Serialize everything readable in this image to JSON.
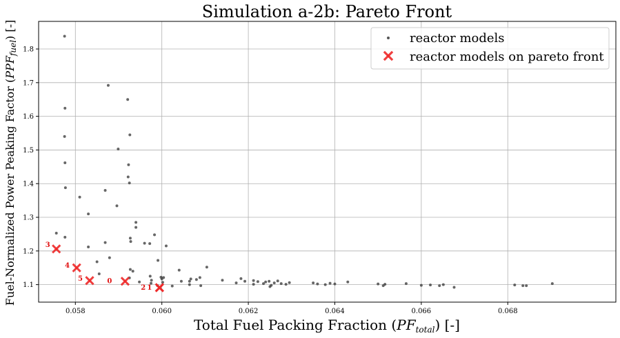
{
  "chart_data": {
    "type": "scatter",
    "title": "Simulation a-2b: Pareto Front",
    "xlabel": {
      "prefix": "Total Fuel Packing Fraction (",
      "italic": "PF",
      "sub": "total",
      "suffix": ") [-]"
    },
    "ylabel": {
      "prefix": "Fuel-Normalized Power Peaking Factor (",
      "italic": "PPF",
      "sub": "fuel",
      "suffix": ") [-]"
    },
    "xlim": [
      0.05715,
      0.0705
    ],
    "ylim": [
      1.048,
      1.882
    ],
    "xticks": [
      0.058,
      0.06,
      0.062,
      0.064,
      0.066,
      0.068
    ],
    "xtick_labels": [
      "0.058",
      "0.060",
      "0.062",
      "0.064",
      "0.066",
      "0.068"
    ],
    "yticks": [
      1.1,
      1.2,
      1.3,
      1.4,
      1.5,
      1.6,
      1.7,
      1.8
    ],
    "ytick_labels": [
      "1.1",
      "1.2",
      "1.3",
      "1.4",
      "1.5",
      "1.6",
      "1.7",
      "1.8"
    ],
    "grid": true,
    "legend_position": "top-right",
    "series": [
      {
        "name": "reactor models",
        "marker": "dot",
        "color": "#333333",
        "points": [
          [
            0.05775,
            1.838
          ],
          [
            0.05876,
            1.692
          ],
          [
            0.05921,
            1.65
          ],
          [
            0.05776,
            1.624
          ],
          [
            0.05926,
            1.545
          ],
          [
            0.05775,
            1.54
          ],
          [
            0.05899,
            1.503
          ],
          [
            0.05776,
            1.462
          ],
          [
            0.05923,
            1.456
          ],
          [
            0.05922,
            1.42
          ],
          [
            0.05925,
            1.402
          ],
          [
            0.05777,
            1.388
          ],
          [
            0.05869,
            1.38
          ],
          [
            0.0581,
            1.36
          ],
          [
            0.05896,
            1.334
          ],
          [
            0.0583,
            1.31
          ],
          [
            0.0594,
            1.285
          ],
          [
            0.0594,
            1.27
          ],
          [
            0.05756,
            1.253
          ],
          [
            0.05983,
            1.248
          ],
          [
            0.05776,
            1.241
          ],
          [
            0.05927,
            1.238
          ],
          [
            0.05928,
            1.228
          ],
          [
            0.05869,
            1.225
          ],
          [
            0.0596,
            1.223
          ],
          [
            0.05972,
            1.222
          ],
          [
            0.0601,
            1.215
          ],
          [
            0.0583,
            1.212
          ],
          [
            0.05879,
            1.18
          ],
          [
            0.05991,
            1.172
          ],
          [
            0.0585,
            1.168
          ],
          [
            0.06104,
            1.152
          ],
          [
            0.05927,
            1.145
          ],
          [
            0.05933,
            1.14
          ],
          [
            0.0604,
            1.143
          ],
          [
            0.05855,
            1.132
          ],
          [
            0.05973,
            1.125
          ],
          [
            0.05925,
            1.12
          ],
          [
            0.05998,
            1.122
          ],
          [
            0.06,
            1.117
          ],
          [
            0.06004,
            1.121
          ],
          [
            0.05976,
            1.113
          ],
          [
            0.06045,
            1.11
          ],
          [
            0.06067,
            1.117
          ],
          [
            0.06064,
            1.11
          ],
          [
            0.0608,
            1.115
          ],
          [
            0.06088,
            1.121
          ],
          [
            0.0614,
            1.113
          ],
          [
            0.06172,
            1.105
          ],
          [
            0.06183,
            1.118
          ],
          [
            0.06192,
            1.11
          ],
          [
            0.06212,
            1.112
          ],
          [
            0.06222,
            1.109
          ],
          [
            0.06235,
            1.103
          ],
          [
            0.0624,
            1.108
          ],
          [
            0.06248,
            1.11
          ],
          [
            0.06253,
            1.098
          ],
          [
            0.0626,
            1.105
          ],
          [
            0.06268,
            1.111
          ],
          [
            0.06276,
            1.103
          ],
          [
            0.06287,
            1.101
          ],
          [
            0.06295,
            1.106
          ],
          [
            0.0636,
            1.102
          ],
          [
            0.0635,
            1.105
          ],
          [
            0.06378,
            1.1
          ],
          [
            0.06389,
            1.104
          ],
          [
            0.064,
            1.102
          ],
          [
            0.0643,
            1.108
          ],
          [
            0.065,
            1.102
          ],
          [
            0.06512,
            1.097
          ],
          [
            0.06516,
            1.101
          ],
          [
            0.06565,
            1.103
          ],
          [
            0.066,
            1.098
          ],
          [
            0.06621,
            1.099
          ],
          [
            0.06642,
            1.097
          ],
          [
            0.06651,
            1.1
          ],
          [
            0.06676,
            1.092
          ],
          [
            0.06816,
            1.099
          ],
          [
            0.06835,
            1.097
          ],
          [
            0.06843,
            1.097
          ],
          [
            0.06903,
            1.103
          ],
          [
            0.0599,
            1.097
          ],
          [
            0.06024,
            1.096
          ],
          [
            0.0609,
            1.097
          ],
          [
            0.06064,
            1.1
          ],
          [
            0.05948,
            1.108
          ],
          [
            0.05975,
            1.104
          ],
          [
            0.06002,
            1.107
          ],
          [
            0.0625,
            1.094
          ],
          [
            0.06212,
            1.101
          ]
        ]
      },
      {
        "name": "reactor models on pareto front",
        "marker": "x",
        "color": "#ee2828",
        "points": [
          {
            "x": 0.059947,
            "y": 1.091,
            "label": "1"
          },
          {
            "x": 0.059945,
            "y": 1.091,
            "label": "2"
          },
          {
            "x": 0.05915,
            "y": 1.11,
            "label": "0"
          },
          {
            "x": 0.05833,
            "y": 1.112,
            "label": "5"
          },
          {
            "x": 0.05803,
            "y": 1.15,
            "label": "4"
          },
          {
            "x": 0.05756,
            "y": 1.206,
            "label": "3"
          }
        ]
      }
    ]
  }
}
